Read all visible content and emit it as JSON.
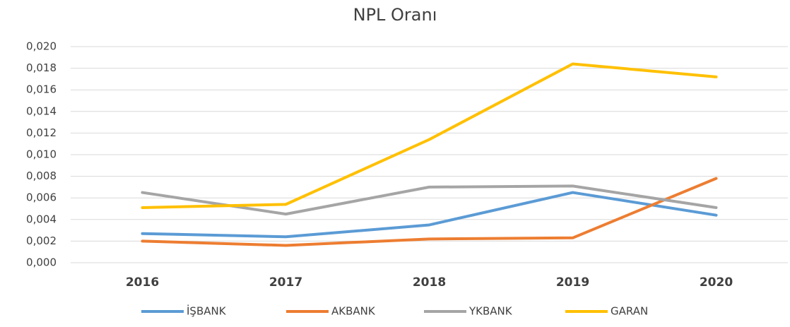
{
  "chart_data": {
    "type": "line",
    "title": "NPL Oranı",
    "categories": [
      "2016",
      "2017",
      "2018",
      "2019",
      "2020"
    ],
    "series": [
      {
        "name": "İŞBANK",
        "color": "#5b9bd5",
        "values": [
          0.0027,
          0.0024,
          0.0035,
          0.0065,
          0.0044
        ]
      },
      {
        "name": "AKBANK",
        "color": "#ed7d31",
        "values": [
          0.002,
          0.0016,
          0.0022,
          0.0023,
          0.0078
        ]
      },
      {
        "name": "YKBANK",
        "color": "#a5a5a5",
        "values": [
          0.0065,
          0.0045,
          0.007,
          0.0071,
          0.0051
        ]
      },
      {
        "name": "GARAN",
        "color": "#ffc000",
        "values": [
          0.0051,
          0.0054,
          0.0114,
          0.0184,
          0.0172
        ]
      }
    ],
    "ylim": [
      0,
      0.02
    ],
    "yticks": [
      {
        "value": 0,
        "label": "0,000"
      },
      {
        "value": 0.002,
        "label": "0,002"
      },
      {
        "value": 0.004,
        "label": "0,004"
      },
      {
        "value": 0.006,
        "label": "0,006"
      },
      {
        "value": 0.008,
        "label": "0,008"
      },
      {
        "value": 0.01,
        "label": "0,010"
      },
      {
        "value": 0.012,
        "label": "0,012"
      },
      {
        "value": 0.014,
        "label": "0,014"
      },
      {
        "value": 0.016,
        "label": "0,016"
      },
      {
        "value": 0.018,
        "label": "0,018"
      },
      {
        "value": 0.02,
        "label": "0,020"
      }
    ],
    "grid": true,
    "legend": "bottom"
  }
}
